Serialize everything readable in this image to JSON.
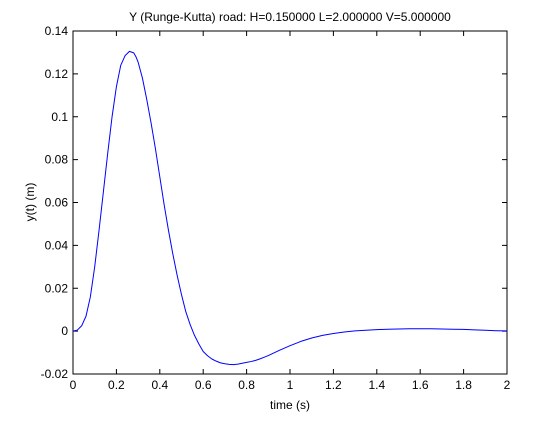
{
  "chart_data": {
    "type": "line",
    "title": "Y (Runge-Kutta) road: H=0.150000 L=2.000000 V=5.000000",
    "xlabel": "time (s)",
    "ylabel": "y(t) (m)",
    "xlim": [
      0,
      2
    ],
    "ylim": [
      -0.02,
      0.14
    ],
    "grid": false,
    "x_ticks": [
      0,
      0.2,
      0.4,
      0.6,
      0.8,
      1,
      1.2,
      1.4,
      1.6,
      1.8,
      2
    ],
    "x_tick_labels": [
      "0",
      "0.2",
      "0.4",
      "0.6",
      "0.8",
      "1",
      "1.2",
      "1.4",
      "1.6",
      "1.8",
      "2"
    ],
    "y_ticks": [
      -0.02,
      0,
      0.02,
      0.04,
      0.06,
      0.08,
      0.1,
      0.12,
      0.14
    ],
    "y_tick_labels": [
      "-0.02",
      "0",
      "0.02",
      "0.04",
      "0.06",
      "0.08",
      "0.1",
      "0.12",
      "0.14"
    ],
    "series": [
      {
        "color": "#0000ff",
        "x": [
          0,
          0.02,
          0.04,
          0.06,
          0.08,
          0.1,
          0.12,
          0.14,
          0.16,
          0.18,
          0.2,
          0.22,
          0.24,
          0.26,
          0.28,
          0.29,
          0.3,
          0.32,
          0.34,
          0.36,
          0.38,
          0.4,
          0.42,
          0.44,
          0.46,
          0.48,
          0.5,
          0.52,
          0.54,
          0.56,
          0.58,
          0.6,
          0.62,
          0.64,
          0.66,
          0.68,
          0.7,
          0.72,
          0.74,
          0.76,
          0.78,
          0.8,
          0.82,
          0.84,
          0.86,
          0.88,
          0.9,
          0.95,
          1.0,
          1.05,
          1.1,
          1.15,
          1.2,
          1.25,
          1.3,
          1.35,
          1.4,
          1.45,
          1.5,
          1.55,
          1.6,
          1.65,
          1.7,
          1.75,
          1.8,
          1.85,
          1.9,
          1.95,
          2.0
        ],
        "y": [
          0,
          0.0005,
          0.0025,
          0.007,
          0.016,
          0.03,
          0.047,
          0.065,
          0.083,
          0.1,
          0.114,
          0.124,
          0.1285,
          0.1305,
          0.1298,
          0.128,
          0.1255,
          0.118,
          0.108,
          0.097,
          0.085,
          0.072,
          0.059,
          0.047,
          0.036,
          0.026,
          0.017,
          0.009,
          0.003,
          -0.002,
          -0.006,
          -0.0095,
          -0.0115,
          -0.013,
          -0.014,
          -0.0148,
          -0.0152,
          -0.0155,
          -0.0156,
          -0.0154,
          -0.015,
          -0.0146,
          -0.0142,
          -0.0137,
          -0.013,
          -0.0122,
          -0.0114,
          -0.009,
          -0.0068,
          -0.0048,
          -0.0032,
          -0.002,
          -0.0011,
          -0.0004,
          0.0001,
          0.0004,
          0.0007,
          0.0009,
          0.001,
          0.0011,
          0.0011,
          0.0011,
          0.001,
          0.0009,
          0.0008,
          0.0006,
          0.0004,
          0.0002,
          0.0001
        ]
      }
    ]
  }
}
